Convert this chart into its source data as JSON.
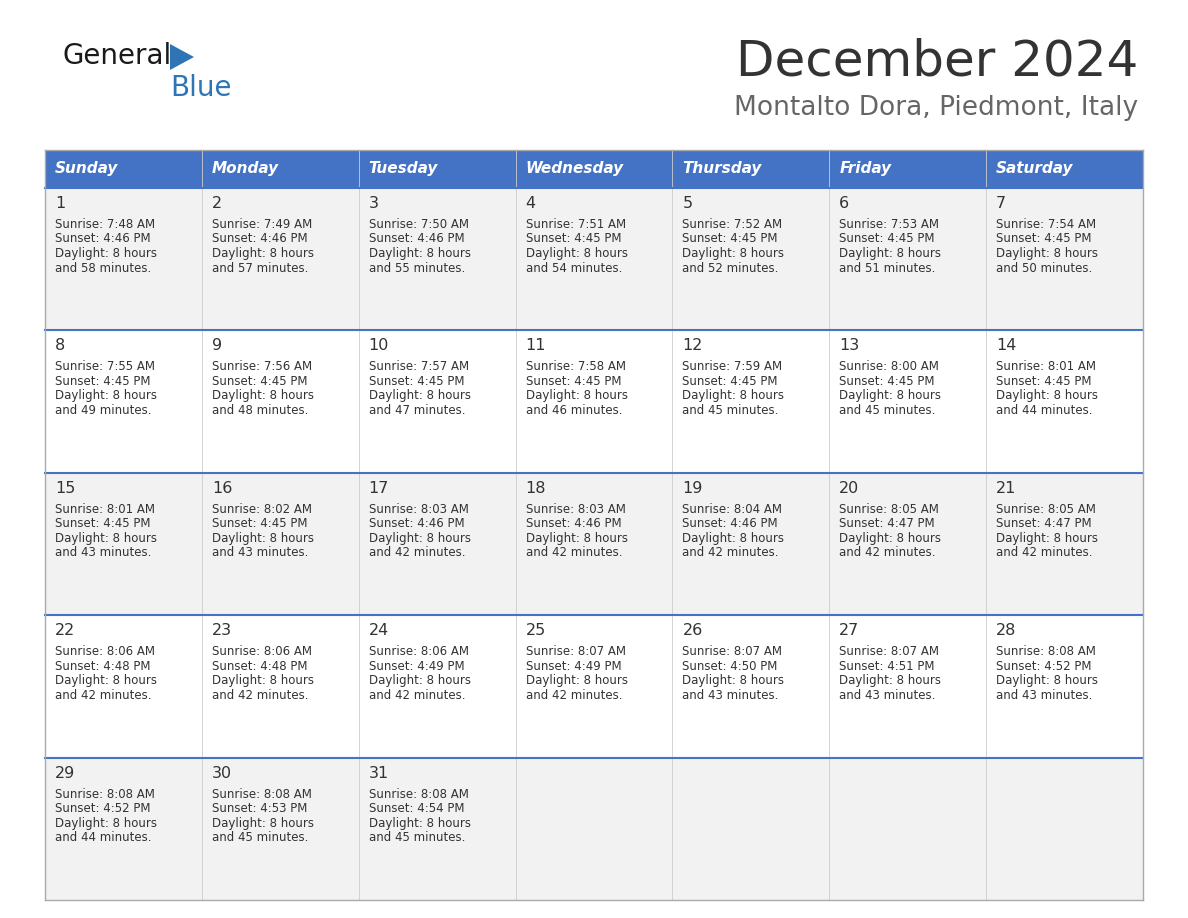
{
  "title": "December 2024",
  "subtitle": "Montalto Dora, Piedmont, Italy",
  "header_color": "#4472C4",
  "header_text_color": "#FFFFFF",
  "days_of_week": [
    "Sunday",
    "Monday",
    "Tuesday",
    "Wednesday",
    "Thursday",
    "Friday",
    "Saturday"
  ],
  "bg_color": "#FFFFFF",
  "row_bg_even": "#F2F2F2",
  "row_bg_odd": "#FFFFFF",
  "line_color": "#4472C4",
  "title_color": "#333333",
  "subtitle_color": "#666666",
  "text_color": "#333333",
  "logo_black": "#1A1A1A",
  "logo_blue": "#2E75B6",
  "calendar_data": [
    [
      {
        "day": 1,
        "sunrise": "7:48 AM",
        "sunset": "4:46 PM",
        "daylight": "8 hours",
        "daylight2": "and 58 minutes."
      },
      {
        "day": 2,
        "sunrise": "7:49 AM",
        "sunset": "4:46 PM",
        "daylight": "8 hours",
        "daylight2": "and 57 minutes."
      },
      {
        "day": 3,
        "sunrise": "7:50 AM",
        "sunset": "4:46 PM",
        "daylight": "8 hours",
        "daylight2": "and 55 minutes."
      },
      {
        "day": 4,
        "sunrise": "7:51 AM",
        "sunset": "4:45 PM",
        "daylight": "8 hours",
        "daylight2": "and 54 minutes."
      },
      {
        "day": 5,
        "sunrise": "7:52 AM",
        "sunset": "4:45 PM",
        "daylight": "8 hours",
        "daylight2": "and 52 minutes."
      },
      {
        "day": 6,
        "sunrise": "7:53 AM",
        "sunset": "4:45 PM",
        "daylight": "8 hours",
        "daylight2": "and 51 minutes."
      },
      {
        "day": 7,
        "sunrise": "7:54 AM",
        "sunset": "4:45 PM",
        "daylight": "8 hours",
        "daylight2": "and 50 minutes."
      }
    ],
    [
      {
        "day": 8,
        "sunrise": "7:55 AM",
        "sunset": "4:45 PM",
        "daylight": "8 hours",
        "daylight2": "and 49 minutes."
      },
      {
        "day": 9,
        "sunrise": "7:56 AM",
        "sunset": "4:45 PM",
        "daylight": "8 hours",
        "daylight2": "and 48 minutes."
      },
      {
        "day": 10,
        "sunrise": "7:57 AM",
        "sunset": "4:45 PM",
        "daylight": "8 hours",
        "daylight2": "and 47 minutes."
      },
      {
        "day": 11,
        "sunrise": "7:58 AM",
        "sunset": "4:45 PM",
        "daylight": "8 hours",
        "daylight2": "and 46 minutes."
      },
      {
        "day": 12,
        "sunrise": "7:59 AM",
        "sunset": "4:45 PM",
        "daylight": "8 hours",
        "daylight2": "and 45 minutes."
      },
      {
        "day": 13,
        "sunrise": "8:00 AM",
        "sunset": "4:45 PM",
        "daylight": "8 hours",
        "daylight2": "and 45 minutes."
      },
      {
        "day": 14,
        "sunrise": "8:01 AM",
        "sunset": "4:45 PM",
        "daylight": "8 hours",
        "daylight2": "and 44 minutes."
      }
    ],
    [
      {
        "day": 15,
        "sunrise": "8:01 AM",
        "sunset": "4:45 PM",
        "daylight": "8 hours",
        "daylight2": "and 43 minutes."
      },
      {
        "day": 16,
        "sunrise": "8:02 AM",
        "sunset": "4:45 PM",
        "daylight": "8 hours",
        "daylight2": "and 43 minutes."
      },
      {
        "day": 17,
        "sunrise": "8:03 AM",
        "sunset": "4:46 PM",
        "daylight": "8 hours",
        "daylight2": "and 42 minutes."
      },
      {
        "day": 18,
        "sunrise": "8:03 AM",
        "sunset": "4:46 PM",
        "daylight": "8 hours",
        "daylight2": "and 42 minutes."
      },
      {
        "day": 19,
        "sunrise": "8:04 AM",
        "sunset": "4:46 PM",
        "daylight": "8 hours",
        "daylight2": "and 42 minutes."
      },
      {
        "day": 20,
        "sunrise": "8:05 AM",
        "sunset": "4:47 PM",
        "daylight": "8 hours",
        "daylight2": "and 42 minutes."
      },
      {
        "day": 21,
        "sunrise": "8:05 AM",
        "sunset": "4:47 PM",
        "daylight": "8 hours",
        "daylight2": "and 42 minutes."
      }
    ],
    [
      {
        "day": 22,
        "sunrise": "8:06 AM",
        "sunset": "4:48 PM",
        "daylight": "8 hours",
        "daylight2": "and 42 minutes."
      },
      {
        "day": 23,
        "sunrise": "8:06 AM",
        "sunset": "4:48 PM",
        "daylight": "8 hours",
        "daylight2": "and 42 minutes."
      },
      {
        "day": 24,
        "sunrise": "8:06 AM",
        "sunset": "4:49 PM",
        "daylight": "8 hours",
        "daylight2": "and 42 minutes."
      },
      {
        "day": 25,
        "sunrise": "8:07 AM",
        "sunset": "4:49 PM",
        "daylight": "8 hours",
        "daylight2": "and 42 minutes."
      },
      {
        "day": 26,
        "sunrise": "8:07 AM",
        "sunset": "4:50 PM",
        "daylight": "8 hours",
        "daylight2": "and 43 minutes."
      },
      {
        "day": 27,
        "sunrise": "8:07 AM",
        "sunset": "4:51 PM",
        "daylight": "8 hours",
        "daylight2": "and 43 minutes."
      },
      {
        "day": 28,
        "sunrise": "8:08 AM",
        "sunset": "4:52 PM",
        "daylight": "8 hours",
        "daylight2": "and 43 minutes."
      }
    ],
    [
      {
        "day": 29,
        "sunrise": "8:08 AM",
        "sunset": "4:52 PM",
        "daylight": "8 hours",
        "daylight2": "and 44 minutes."
      },
      {
        "day": 30,
        "sunrise": "8:08 AM",
        "sunset": "4:53 PM",
        "daylight": "8 hours",
        "daylight2": "and 45 minutes."
      },
      {
        "day": 31,
        "sunrise": "8:08 AM",
        "sunset": "4:54 PM",
        "daylight": "8 hours",
        "daylight2": "and 45 minutes."
      },
      null,
      null,
      null,
      null
    ]
  ]
}
